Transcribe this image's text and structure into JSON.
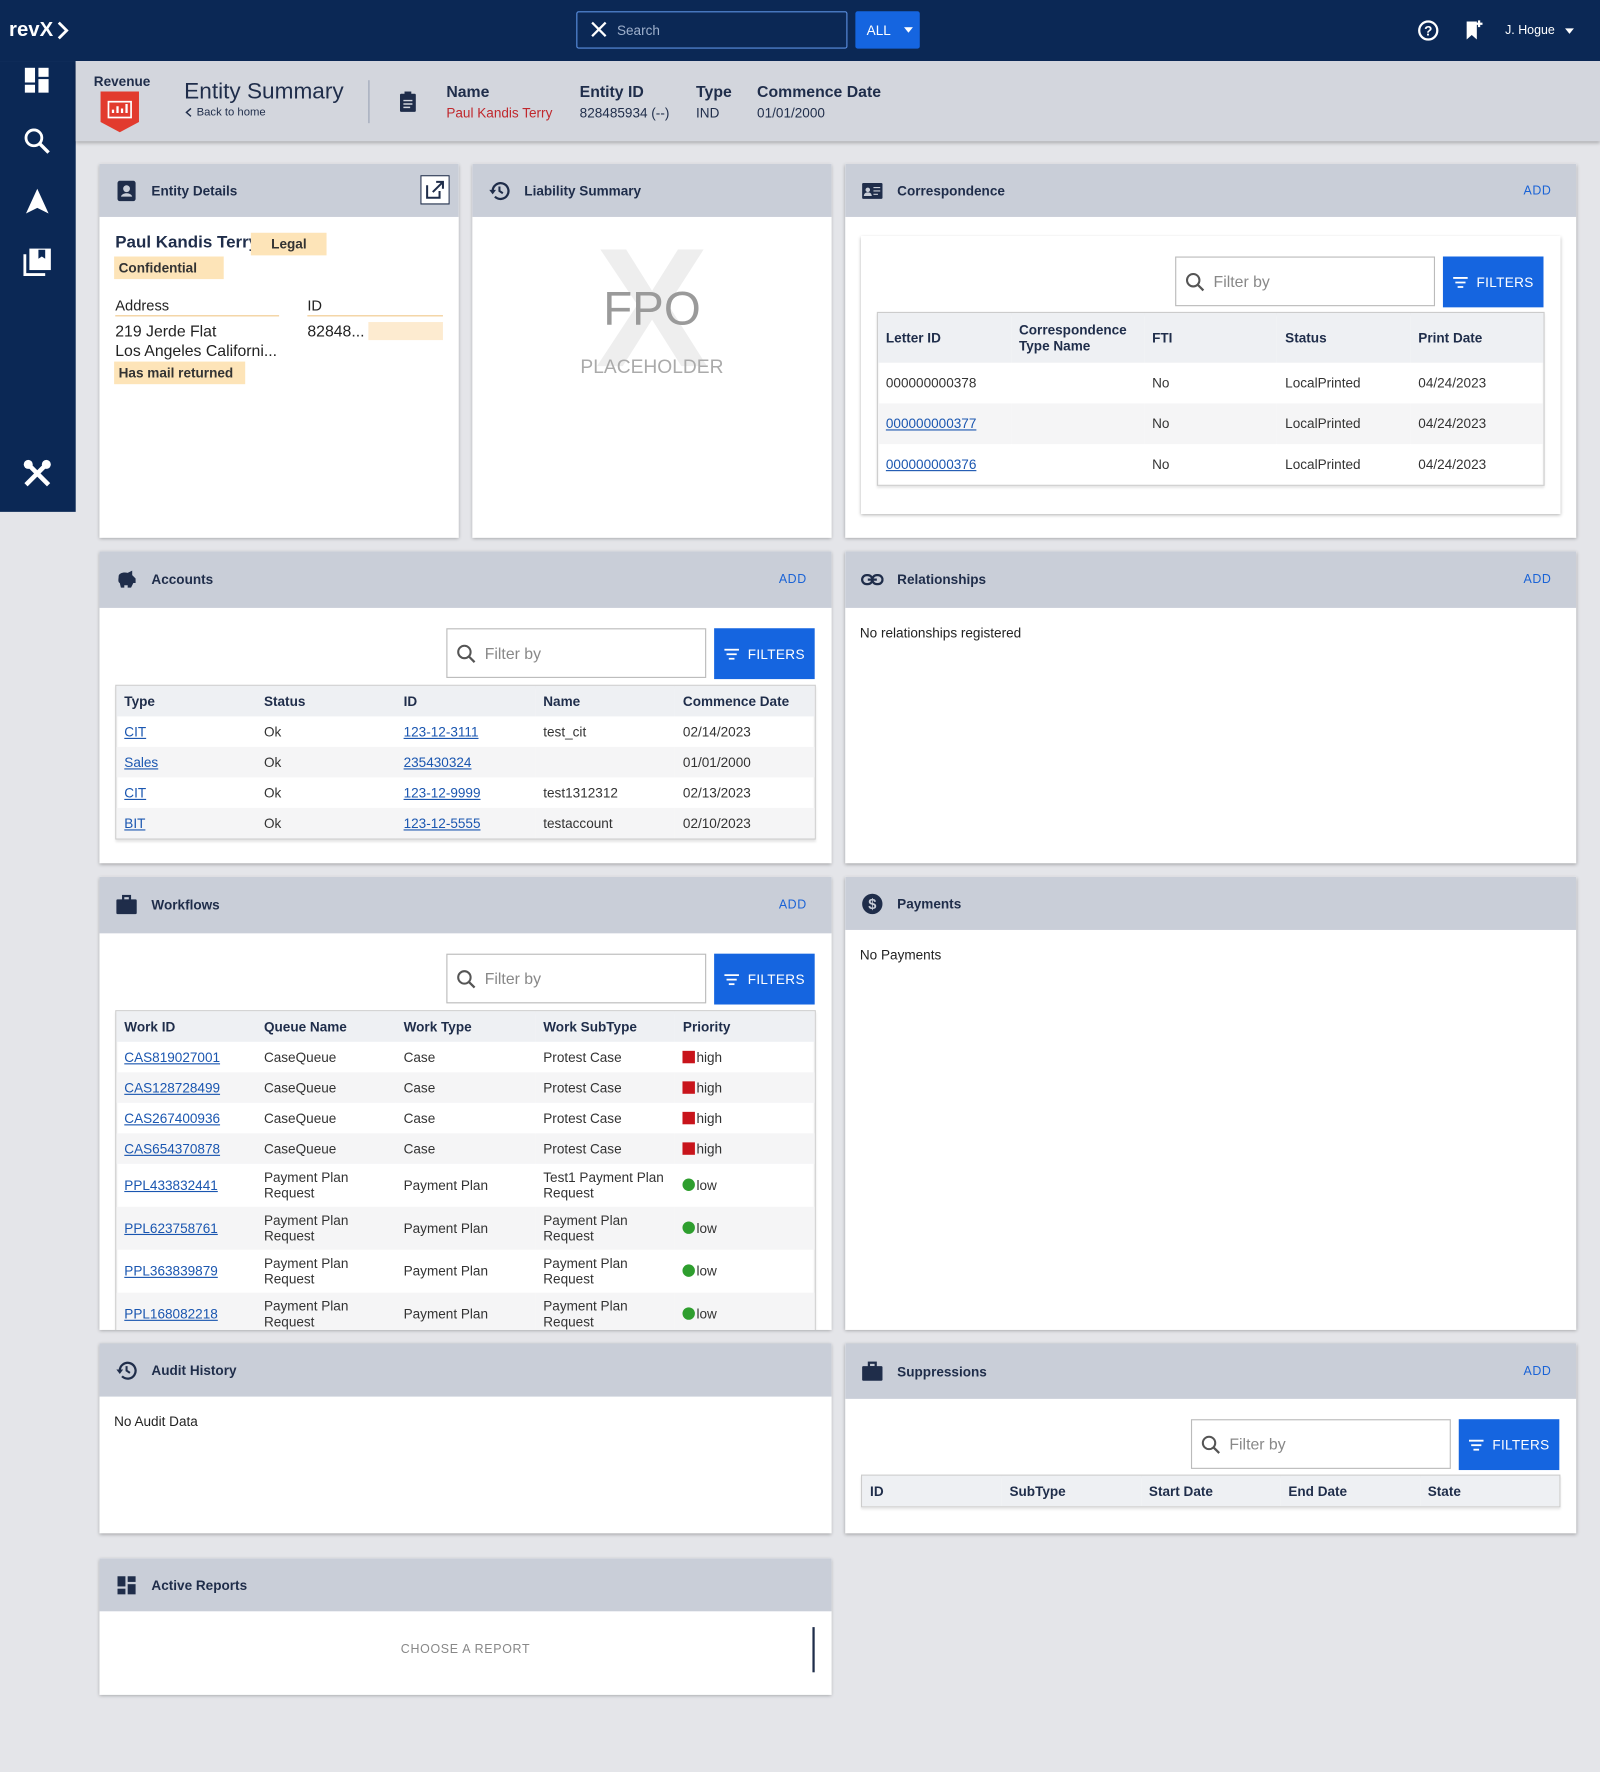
{
  "topbar": {
    "logo": "revX",
    "search_placeholder": "Search",
    "scope": "ALL",
    "user": "J. Hogue"
  },
  "header": {
    "brand": "Revenue",
    "title": "Entity Summary",
    "back": "Back to home",
    "fields": [
      {
        "label": "Name",
        "value": "Paul Kandis Terry"
      },
      {
        "label": "Entity ID",
        "value": "828485934 (--)"
      },
      {
        "label": "Type",
        "value": "IND"
      },
      {
        "label": "Commence Date",
        "value": "01/01/2000"
      }
    ]
  },
  "entity_details": {
    "title": "Entity Details",
    "name": "Paul Kandis Terry",
    "tags": [
      "Legal",
      "Confidential"
    ],
    "address_label": "Address",
    "address_lines": [
      "219 Jerde Flat",
      "Los Angeles Californi..."
    ],
    "address_tag": "Has mail returned",
    "id_label": "ID",
    "id_value": "82848..."
  },
  "liability_summary": {
    "title": "Liability Summary",
    "placeholder_mark": "X",
    "placeholder_text": "FPO",
    "placeholder_subtext": "PLACEHOLDER"
  },
  "correspondence": {
    "title": "Correspondence",
    "action": "ADD",
    "filter_placeholder": "Filter by",
    "filter_button": "FILTERS",
    "columns": [
      "Letter ID",
      "Correspondence Type Name",
      "FTI",
      "Status",
      "Print Date"
    ],
    "rows": [
      [
        "000000000378",
        null,
        "No",
        "LocalPrinted",
        "04/24/2023"
      ],
      [
        "000000000377",
        null,
        "No",
        "LocalPrinted",
        "04/24/2023"
      ],
      [
        "000000000376",
        null,
        "No",
        "LocalPrinted",
        "04/24/2023"
      ]
    ]
  },
  "accounts": {
    "title": "Accounts",
    "action": "ADD",
    "filter_placeholder": "Filter by",
    "filter_button": "FILTERS",
    "columns": [
      "Type",
      "Status",
      "ID",
      "Name",
      "Commence Date"
    ],
    "rows": [
      [
        "CIT",
        "Ok",
        "123-12-3111",
        "test_cit",
        "02/14/2023"
      ],
      [
        "Sales",
        "Ok",
        "235430324",
        null,
        "01/01/2000"
      ],
      [
        "CIT",
        "Ok",
        "123-12-9999",
        "test1312312",
        "02/13/2023"
      ],
      [
        "BIT",
        "Ok",
        "123-12-5555",
        "testaccount",
        "02/10/2023"
      ]
    ]
  },
  "relationships": {
    "title": "Relationships",
    "action": "ADD",
    "empty": "No relationships registered"
  },
  "workflows": {
    "title": "Workflows",
    "action": "ADD",
    "filter_placeholder": "Filter by",
    "filter_button": "FILTERS",
    "columns": [
      "Work ID",
      "Queue Name",
      "Work Type",
      "Work SubType",
      "Priority"
    ],
    "rows": [
      [
        "CAS819027001",
        "CaseQueue",
        "Case",
        "Protest Case",
        "high"
      ],
      [
        "CAS128728499",
        "CaseQueue",
        "Case",
        "Protest Case",
        "high"
      ],
      [
        "CAS267400936",
        "CaseQueue",
        "Case",
        "Protest Case",
        "high"
      ],
      [
        "CAS654370878",
        "CaseQueue",
        "Case",
        "Protest Case",
        "high"
      ],
      [
        "PPL433832441",
        "Payment Plan Request",
        "Payment Plan",
        "Test1 Payment Plan Request",
        "low"
      ],
      [
        "PPL623758761",
        "Payment Plan Request",
        "Payment Plan",
        "Payment Plan Request",
        "low"
      ],
      [
        "PPL363839879",
        "Payment Plan Request",
        "Payment Plan",
        "Payment Plan Request",
        "low"
      ],
      [
        "PPL168082218",
        "Payment Plan Request",
        "Payment Plan",
        "Payment Plan Request",
        "low"
      ]
    ]
  },
  "payments": {
    "title": "Payments",
    "empty": "No Payments"
  },
  "audit_history": {
    "title": "Audit History",
    "empty": "No Audit Data"
  },
  "suppressions": {
    "title": "Suppressions",
    "action": "ADD",
    "filter_placeholder": "Filter by",
    "filter_button": "FILTERS",
    "columns": [
      "ID",
      "SubType",
      "Start Date",
      "End Date",
      "State"
    ],
    "rows": []
  },
  "active_reports": {
    "title": "Active Reports",
    "button": "CHOOSE A REPORT"
  }
}
